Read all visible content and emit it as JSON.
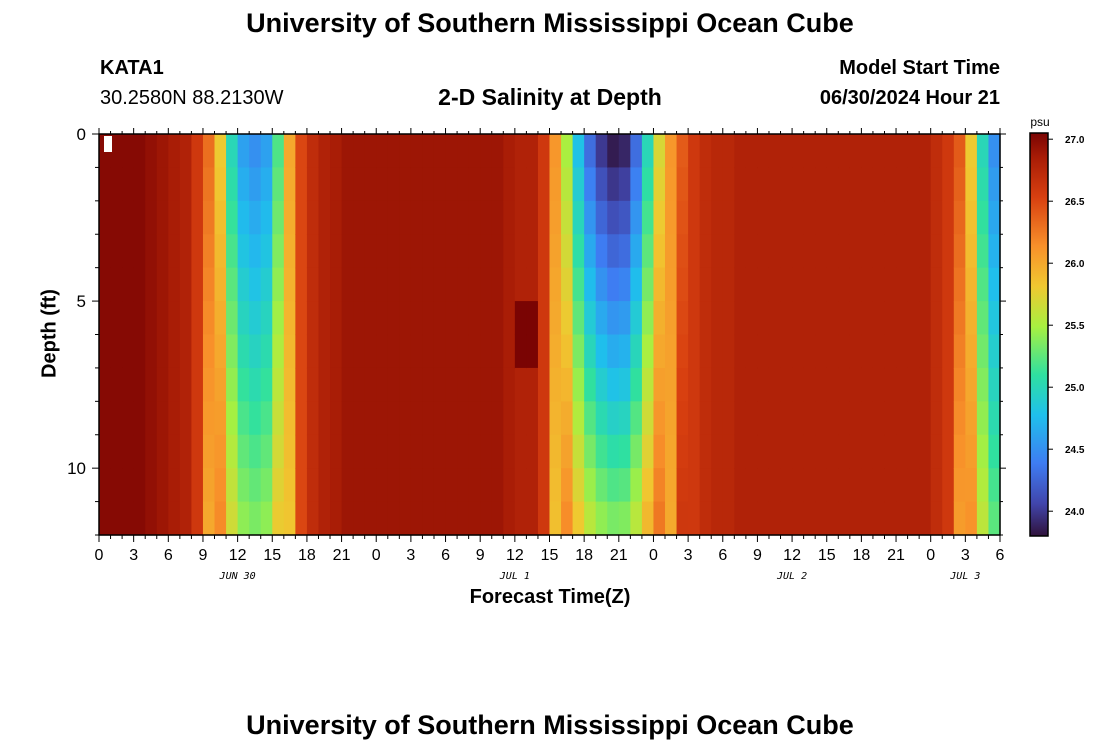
{
  "page": {
    "title_top": "University of Southern Mississippi Ocean Cube",
    "title_bottom": "University of Southern Mississippi Ocean Cube",
    "station_id": "KATA1",
    "station_coords": "30.2580N  88.2130W",
    "chart_subtitle": "2-D Salinity at Depth",
    "model_start_label": "Model Start Time",
    "model_start_value": "06/30/2024 Hour 21"
  },
  "chart_data": {
    "type": "heatmap",
    "title": "2-D Salinity at Depth",
    "xlabel": "Forecast Time(Z)",
    "ylabel": "Depth (ft)",
    "y_ticks": [
      "0",
      "5",
      "10"
    ],
    "ylim": [
      0,
      12
    ],
    "x_tick_labels": [
      "0",
      "3",
      "6",
      "9",
      "12",
      "15",
      "18",
      "21",
      "0",
      "3",
      "6",
      "9",
      "12",
      "15",
      "18",
      "21",
      "0",
      "3",
      "6",
      "9",
      "12",
      "15",
      "18",
      "21",
      "0",
      "3",
      "6"
    ],
    "date_labels": [
      {
        "label": "JUN 30",
        "at_hour": 12
      },
      {
        "label": "JUL 1",
        "at_hour": 36
      },
      {
        "label": "JUL 2",
        "at_hour": 60
      },
      {
        "label": "JUL 3",
        "at_hour": 75
      }
    ],
    "hours_total": 78,
    "colorbar": {
      "unit": "psu",
      "min": 23.8,
      "max": 27.05,
      "ticks": [
        "24.0",
        "24.5",
        "25.0",
        "25.5",
        "26.0",
        "26.5",
        "27.0"
      ]
    },
    "grid_note": "columns every 1 hour (0-78), depth rows every 1 ft (0-12)",
    "surface_profile_psu": [
      27.0,
      27.0,
      27.0,
      27.0,
      26.95,
      26.9,
      26.85,
      26.8,
      26.6,
      26.3,
      25.8,
      25.0,
      24.6,
      24.5,
      24.6,
      25.2,
      26.0,
      26.5,
      26.7,
      26.8,
      26.85,
      26.9,
      26.9,
      26.9,
      26.9,
      26.9,
      26.9,
      26.9,
      26.9,
      26.9,
      26.9,
      26.9,
      26.9,
      26.9,
      26.9,
      26.85,
      26.8,
      26.8,
      26.6,
      26.1,
      25.5,
      24.8,
      24.3,
      24.0,
      23.85,
      23.9,
      24.3,
      25.0,
      25.7,
      26.1,
      26.4,
      26.6,
      26.7,
      26.75,
      26.75,
      26.8,
      26.8,
      26.8,
      26.8,
      26.8,
      26.8,
      26.8,
      26.8,
      26.8,
      26.8,
      26.8,
      26.8,
      26.8,
      26.8,
      26.8,
      26.8,
      26.8,
      26.7,
      26.6,
      26.4,
      25.8,
      25.0,
      24.5
    ]
  }
}
